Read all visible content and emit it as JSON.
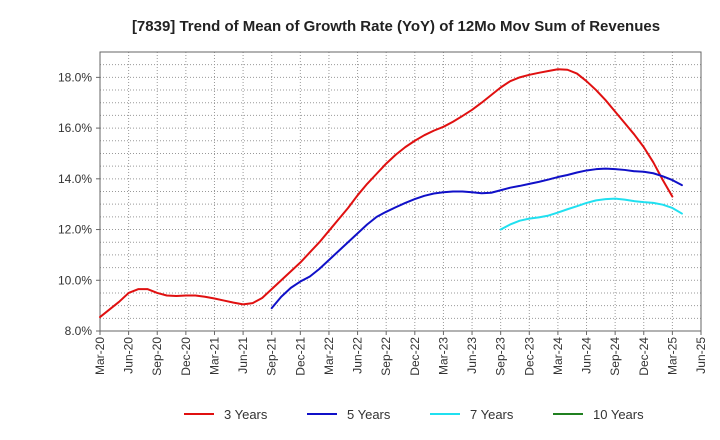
{
  "chart_data": {
    "type": "line",
    "title": "[7839]  Trend of Mean of Growth Rate (YoY) of 12Mo Mov Sum of Revenues",
    "xlabel": "",
    "ylabel": "",
    "ylim": [
      8.0,
      19.0
    ],
    "y_ticks": [
      8.0,
      10.0,
      12.0,
      14.0,
      16.0,
      18.0
    ],
    "y_tick_labels": [
      "8.0%",
      "10.0%",
      "12.0%",
      "14.0%",
      "16.0%",
      "18.0%"
    ],
    "x_tick_labels": [
      "Mar-20",
      "Jun-20",
      "Sep-20",
      "Dec-20",
      "Mar-21",
      "Jun-21",
      "Sep-21",
      "Dec-21",
      "Mar-22",
      "Jun-22",
      "Sep-22",
      "Dec-22",
      "Mar-23",
      "Jun-23",
      "Sep-23",
      "Dec-23",
      "Mar-24",
      "Jun-24",
      "Sep-24",
      "Dec-24",
      "Mar-25",
      "Jun-25"
    ],
    "grid": true,
    "legend_position": "bottom",
    "series": [
      {
        "name": "3 Years",
        "color": "#e01010",
        "start_month_index": 0,
        "values": [
          8.55,
          8.85,
          9.15,
          9.5,
          9.65,
          9.65,
          9.5,
          9.4,
          9.38,
          9.4,
          9.4,
          9.35,
          9.28,
          9.2,
          9.12,
          9.05,
          9.1,
          9.3,
          9.65,
          10.0,
          10.35,
          10.7,
          11.1,
          11.5,
          11.95,
          12.4,
          12.85,
          13.35,
          13.8,
          14.2,
          14.6,
          14.95,
          15.25,
          15.5,
          15.72,
          15.9,
          16.05,
          16.25,
          16.48,
          16.72,
          17.0,
          17.3,
          17.6,
          17.85,
          18.0,
          18.1,
          18.18,
          18.25,
          18.32,
          18.3,
          18.15,
          17.85,
          17.5,
          17.1,
          16.65,
          16.2,
          15.75,
          15.25,
          14.65,
          13.95,
          13.3
        ]
      },
      {
        "name": "5 Years",
        "color": "#1010c8",
        "start_month_index": 18,
        "values": [
          8.9,
          9.35,
          9.7,
          9.95,
          10.15,
          10.45,
          10.8,
          11.15,
          11.5,
          11.85,
          12.2,
          12.5,
          12.7,
          12.88,
          13.05,
          13.2,
          13.33,
          13.42,
          13.47,
          13.5,
          13.5,
          13.47,
          13.43,
          13.45,
          13.55,
          13.65,
          13.72,
          13.8,
          13.88,
          13.97,
          14.07,
          14.15,
          14.25,
          14.33,
          14.38,
          14.4,
          14.38,
          14.35,
          14.3,
          14.28,
          14.22,
          14.1,
          13.95,
          13.75
        ]
      },
      {
        "name": "7 Years",
        "color": "#20e0f0",
        "start_month_index": 42,
        "values": [
          12.0,
          12.2,
          12.35,
          12.43,
          12.48,
          12.55,
          12.67,
          12.8,
          12.92,
          13.05,
          13.15,
          13.2,
          13.22,
          13.18,
          13.12,
          13.08,
          13.05,
          12.98,
          12.85,
          12.63
        ]
      },
      {
        "name": "10 Years",
        "color": "#208020",
        "start_month_index": 0,
        "values": []
      }
    ]
  }
}
